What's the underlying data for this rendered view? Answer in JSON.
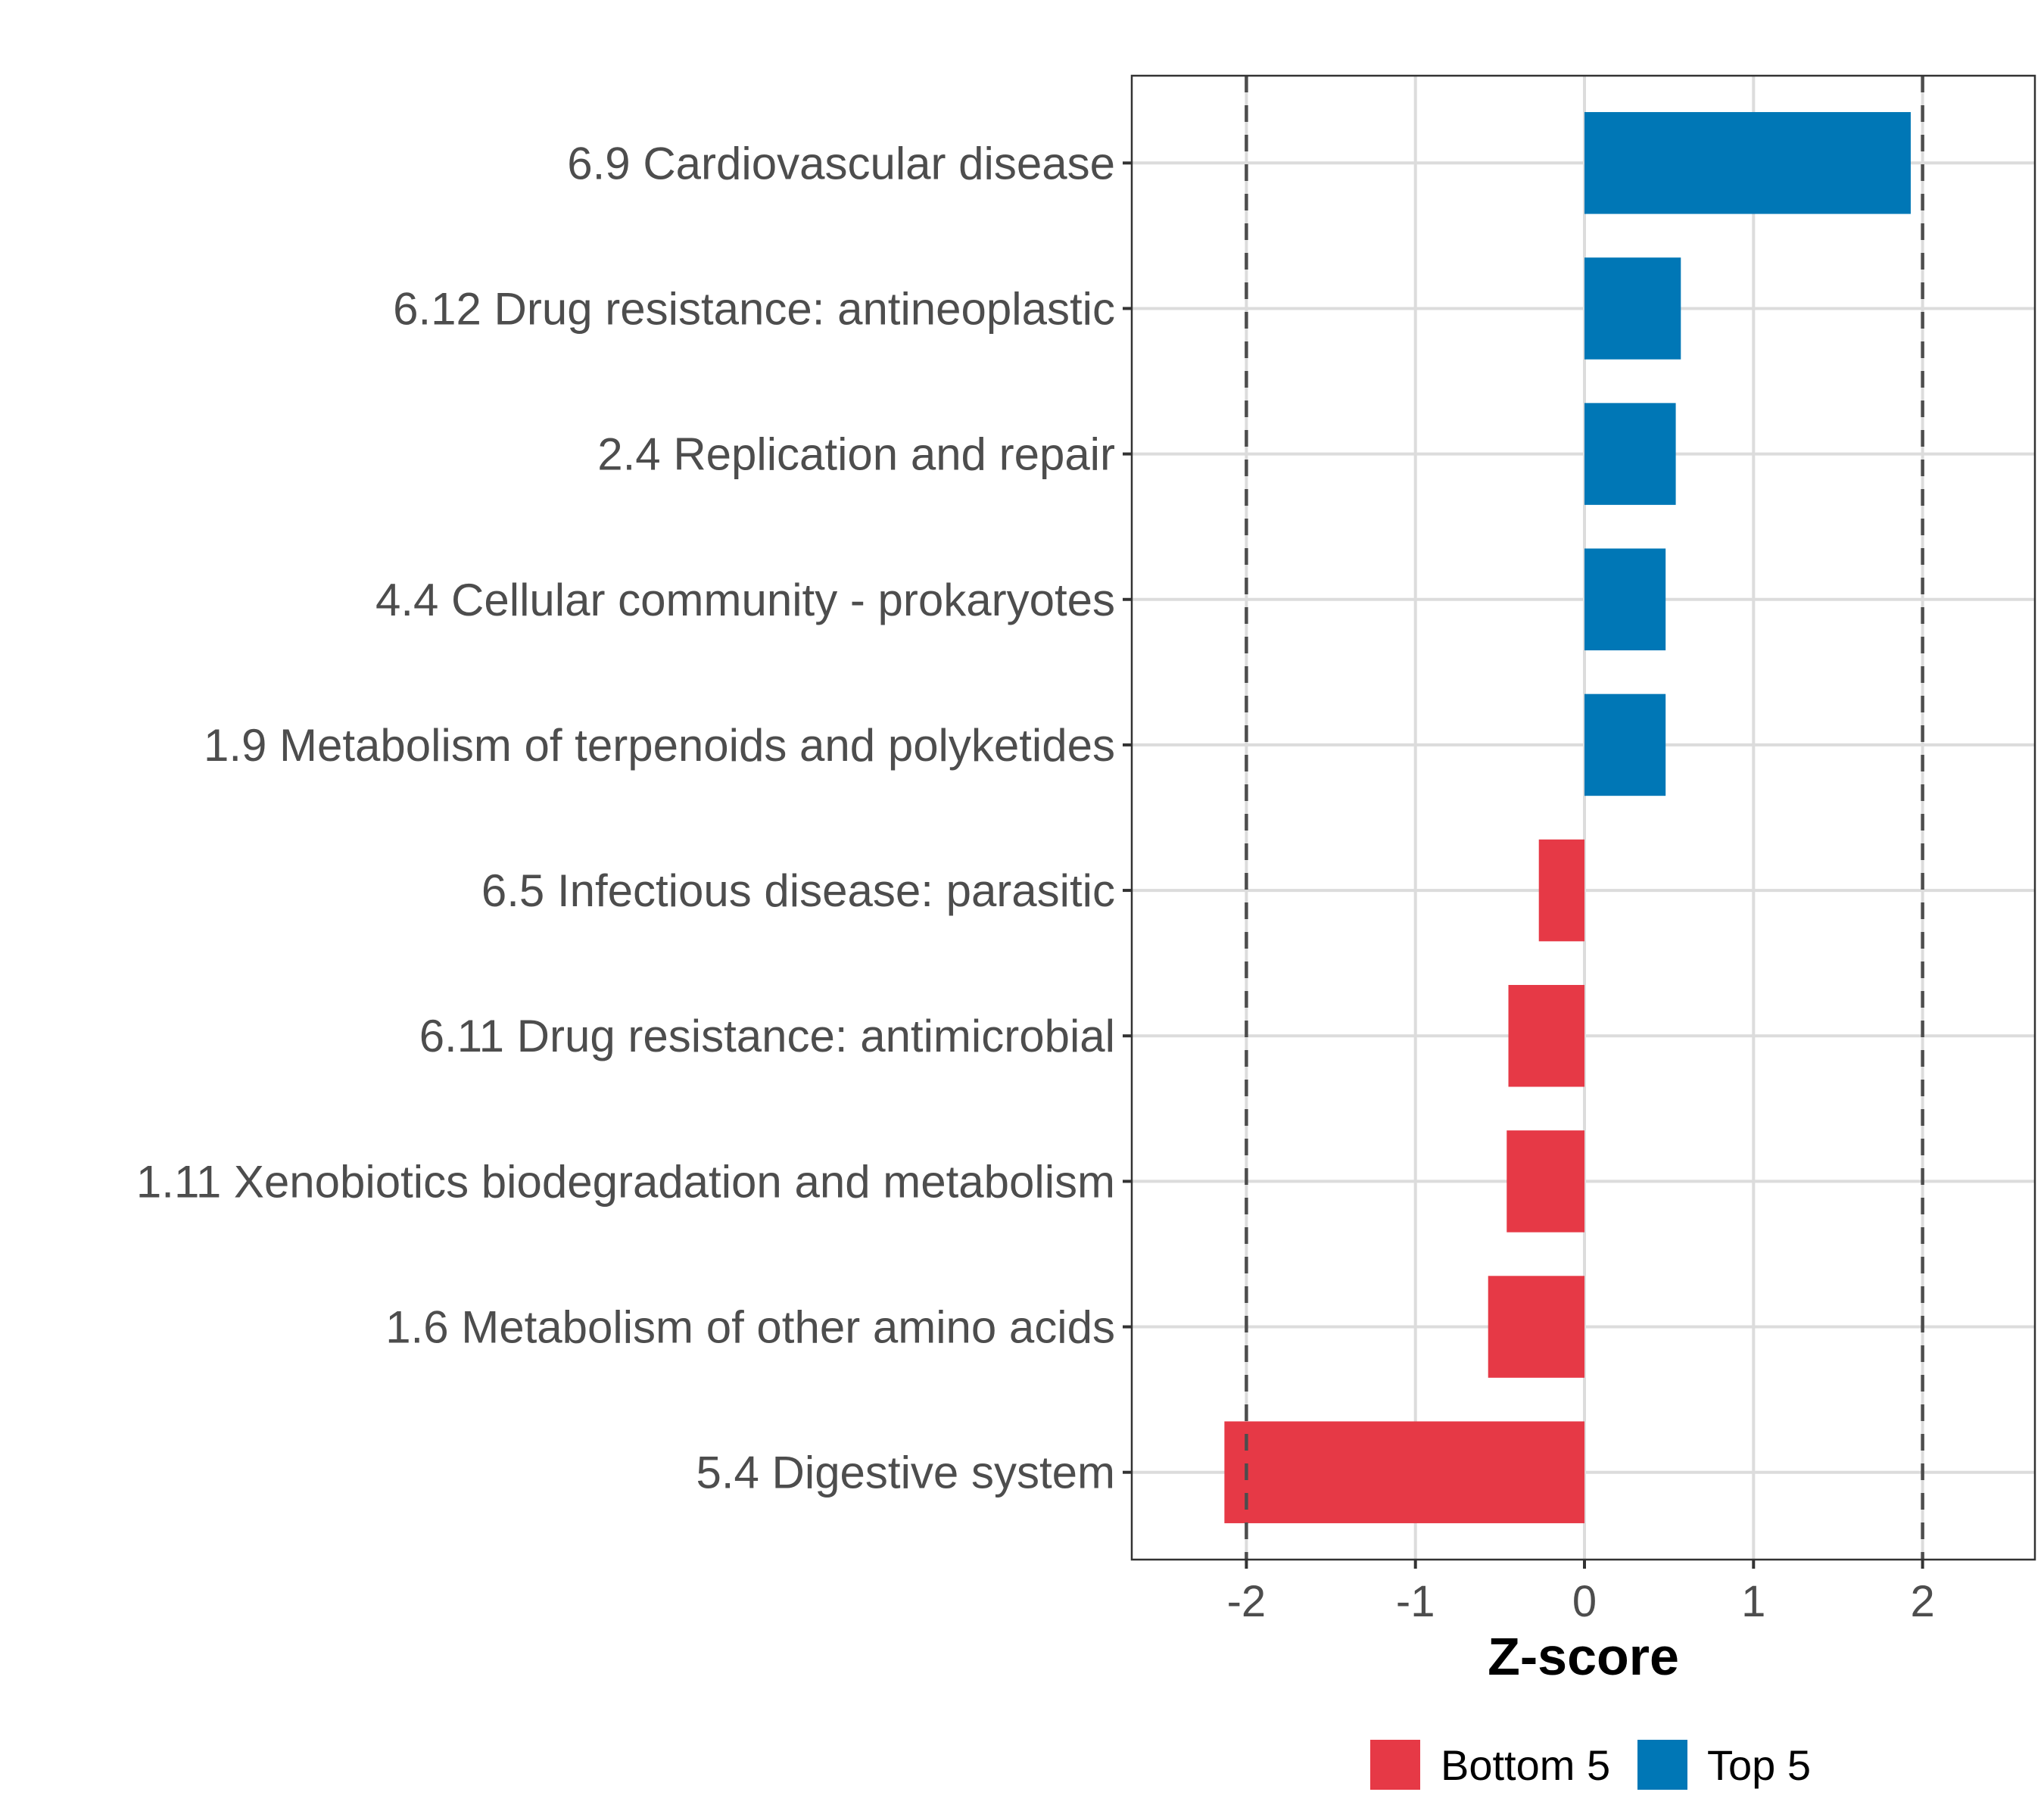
{
  "chart_data": {
    "type": "bar",
    "orientation": "horizontal",
    "title": "",
    "xlabel": "Z-score",
    "ylabel": "",
    "xlim": [
      -2.67,
      2.67
    ],
    "xticks": [
      -2,
      -1,
      0,
      1,
      2
    ],
    "xtick_labels": [
      "-2",
      "-1",
      "0",
      "1",
      "2"
    ],
    "grid": true,
    "reference_lines": [
      {
        "x": -2,
        "style": "dashed",
        "color": "#4d4d4d"
      },
      {
        "x": 2,
        "style": "dashed",
        "color": "#4d4d4d"
      }
    ],
    "categories": [
      "6.9 Cardiovascular disease",
      "6.12 Drug resistance: antineoplastic",
      "2.4 Replication and repair",
      "4.4 Cellular community - prokaryotes",
      "1.9 Metabolism of terpenoids and polyketides",
      "6.5 Infectious disease: parasitic",
      "6.11 Drug resistance: antimicrobial",
      "1.11 Xenobiotics biodegradation and metabolism",
      "1.6 Metabolism of other amino acids",
      "5.4 Digestive system"
    ],
    "values": [
      1.93,
      0.57,
      0.54,
      0.48,
      0.48,
      -0.27,
      -0.45,
      -0.46,
      -0.57,
      -2.13
    ],
    "groups": [
      "Top 5",
      "Top 5",
      "Top 5",
      "Top 5",
      "Top 5",
      "Bottom 5",
      "Bottom 5",
      "Bottom 5",
      "Bottom 5",
      "Bottom 5"
    ],
    "legend": {
      "position": "bottom",
      "entries": [
        {
          "label": "Bottom 5",
          "color": "#E63946"
        },
        {
          "label": "Top 5",
          "color": "#0077B6"
        }
      ]
    },
    "colors": {
      "Top 5": "#0077B6",
      "Bottom 5": "#E63946"
    }
  }
}
